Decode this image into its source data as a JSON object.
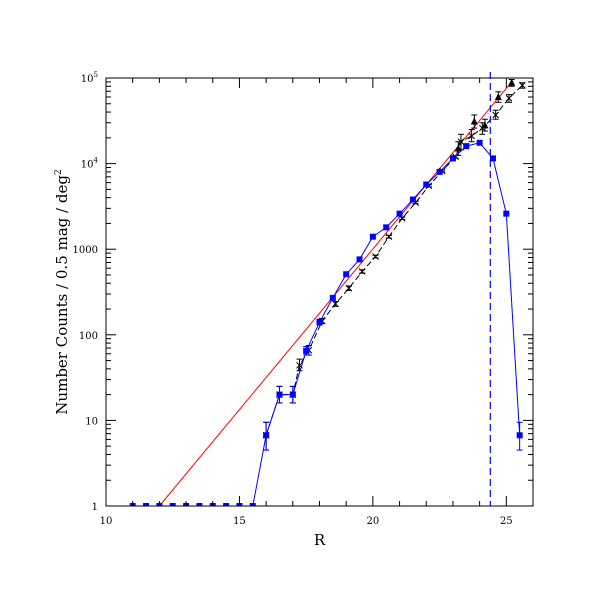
{
  "chart_data": {
    "type": "scatter",
    "title": "",
    "xlabel": "R",
    "ylabel": "Number Counts / 0.5 mag / deg",
    "ylabel_superscript": "2",
    "xlim": [
      10,
      26
    ],
    "ylim": [
      1,
      100000
    ],
    "yscale": "log",
    "x_ticks": [
      {
        "value": 10,
        "label": "10"
      },
      {
        "value": 15,
        "label": "15"
      },
      {
        "value": 20,
        "label": "20"
      },
      {
        "value": 25,
        "label": "25"
      }
    ],
    "y_ticks": [
      {
        "value": 1,
        "label": "1"
      },
      {
        "value": 10,
        "label": "10"
      },
      {
        "value": 100,
        "label": "100"
      },
      {
        "value": 1000,
        "label": "1000"
      },
      {
        "value": 10000,
        "label": "10",
        "sup": "4"
      },
      {
        "value": 100000,
        "label": "10",
        "sup": "5"
      }
    ],
    "colors": {
      "blue": "#0000ff",
      "red": "#ff0000",
      "black": "#000000"
    },
    "series": [
      {
        "marker": "square",
        "color": "#0000ff",
        "points": [
          {
            "x": 11.0,
            "y": 1
          },
          {
            "x": 11.5,
            "y": 1
          },
          {
            "x": 12.0,
            "y": 1
          },
          {
            "x": 12.5,
            "y": 1
          },
          {
            "x": 13.0,
            "y": 1
          },
          {
            "x": 13.5,
            "y": 1
          },
          {
            "x": 14.0,
            "y": 1
          },
          {
            "x": 14.5,
            "y": 1
          },
          {
            "x": 15.0,
            "y": 1
          },
          {
            "x": 15.5,
            "y": 1
          },
          {
            "x": 16.0,
            "y": 6.7,
            "err": [
              4.5,
              9.5
            ]
          },
          {
            "x": 16.5,
            "y": 20,
            "err": [
              16,
              25
            ]
          },
          {
            "x": 17.0,
            "y": 20,
            "err": [
              16,
              25
            ]
          },
          {
            "x": 17.5,
            "y": 65,
            "err": [
              58,
              73
            ]
          },
          {
            "x": 18.0,
            "y": 140,
            "err": [
              130,
              152
            ]
          },
          {
            "x": 18.5,
            "y": 270
          },
          {
            "x": 19.0,
            "y": 510
          },
          {
            "x": 19.5,
            "y": 760
          },
          {
            "x": 20.0,
            "y": 1400
          },
          {
            "x": 20.5,
            "y": 1800
          },
          {
            "x": 21.0,
            "y": 2600
          },
          {
            "x": 21.5,
            "y": 3800
          },
          {
            "x": 22.0,
            "y": 5700
          },
          {
            "x": 22.5,
            "y": 8000
          },
          {
            "x": 23.0,
            "y": 11500
          },
          {
            "x": 23.5,
            "y": 16000
          },
          {
            "x": 24.0,
            "y": 17500
          },
          {
            "x": 24.5,
            "y": 11500
          },
          {
            "x": 25.0,
            "y": 2600
          },
          {
            "x": 25.5,
            "y": 6.7,
            "err": [
              4.5,
              9.5
            ]
          }
        ]
      },
      {
        "marker": "cross",
        "color": "#000000",
        "points": [
          {
            "x": 16.0,
            "y": 6.7,
            "err": [
              4.5,
              9.5
            ]
          },
          {
            "x": 16.5,
            "y": 20,
            "err": [
              16,
              25
            ]
          },
          {
            "x": 17.0,
            "y": 20,
            "err": [
              16,
              25
            ]
          },
          {
            "x": 17.25,
            "y": 44,
            "err": [
              38,
              52
            ]
          },
          {
            "x": 17.6,
            "y": 66,
            "err": [
              58,
              75
            ]
          },
          {
            "x": 18.1,
            "y": 145,
            "err": [
              135,
              155
            ]
          },
          {
            "x": 18.6,
            "y": 230,
            "err": [
              215,
              245
            ]
          },
          {
            "x": 19.1,
            "y": 350,
            "err": [
              330,
              372
            ]
          },
          {
            "x": 19.6,
            "y": 550,
            "err": [
              525,
              575
            ]
          },
          {
            "x": 20.1,
            "y": 820,
            "err": [
              790,
              850
            ]
          },
          {
            "x": 20.6,
            "y": 1400,
            "err": [
              1350,
              1450
            ]
          },
          {
            "x": 21.1,
            "y": 2300,
            "err": [
              2230,
              2370
            ]
          },
          {
            "x": 21.6,
            "y": 3500,
            "err": [
              3400,
              3600
            ]
          },
          {
            "x": 22.1,
            "y": 5500,
            "err": [
              5350,
              5650
            ]
          },
          {
            "x": 22.6,
            "y": 8200,
            "err": [
              8000,
              8400
            ]
          },
          {
            "x": 23.1,
            "y": 12000,
            "err": [
              11600,
              12400
            ]
          },
          {
            "x": 23.3,
            "y": 18000,
            "err": [
              14500,
              22000
            ]
          },
          {
            "x": 23.7,
            "y": 21000,
            "err": [
              18000,
              25000
            ]
          },
          {
            "x": 24.1,
            "y": 26000,
            "err": [
              22000,
              30000
            ]
          },
          {
            "x": 24.6,
            "y": 37000,
            "err": [
              33000,
              42000
            ]
          },
          {
            "x": 25.1,
            "y": 58000,
            "err": [
              52000,
              64000
            ]
          },
          {
            "x": 25.6,
            "y": 82000,
            "err": [
              76000,
              88000
            ]
          }
        ]
      },
      {
        "marker": "triangle",
        "color": "#000000",
        "points": [
          {
            "x": 23.2,
            "y": 15000,
            "err": [
              12500,
              18000
            ]
          },
          {
            "x": 23.8,
            "y": 31000,
            "err": [
              26000,
              37000
            ]
          },
          {
            "x": 24.2,
            "y": 28000,
            "err": [
              24000,
              33000
            ]
          },
          {
            "x": 24.7,
            "y": 60000,
            "err": [
              52000,
              69000
            ]
          },
          {
            "x": 25.2,
            "y": 88000,
            "err": [
              80000,
              96000
            ]
          }
        ]
      }
    ],
    "fit_line": {
      "color": "#ff0000",
      "points": [
        {
          "x": 12.0,
          "y": 1
        },
        {
          "x": 25.2,
          "y": 90000
        }
      ]
    },
    "limit_line": {
      "color": "#0000ff",
      "x": 24.4,
      "style": "dashed"
    }
  }
}
